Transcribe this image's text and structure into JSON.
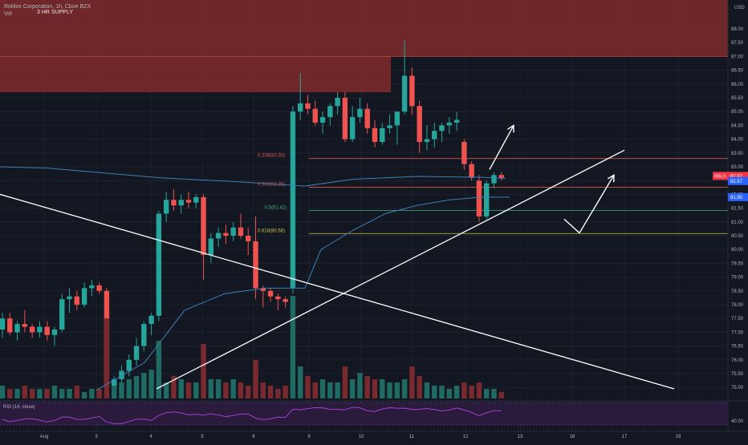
{
  "chart_data": {
    "type": "candlestick",
    "title": "Roblox Corporation, 1h, Cboe BZX",
    "volume_label": "Vol",
    "currency": "USD",
    "ylim": [
      74.6,
      88.9
    ],
    "y_ticks": [
      "88.00",
      "87.50",
      "87.00",
      "86.50",
      "86.00",
      "85.50",
      "85.00",
      "84.50",
      "84.00",
      "83.50",
      "83.00",
      "82.50",
      "82.00",
      "81.50",
      "81.00",
      "80.50",
      "80.00",
      "79.50",
      "79.00",
      "78.50",
      "78.00",
      "77.50",
      "77.00",
      "76.50",
      "76.00",
      "75.50",
      "75.00"
    ],
    "x_ticks": [
      "Aug",
      "3",
      "4",
      "5",
      "6",
      "9",
      "10",
      "11",
      "12",
      "13",
      "16",
      "17",
      "18"
    ],
    "supply_zone": {
      "label": "3 HR SUPPLY",
      "ylim_upper": [
        87.0,
        88.9
      ],
      "ylim_lower": [
        85.7,
        87.0
      ]
    },
    "fibonacci": [
      {
        "label": "0.236(83.30)",
        "price": 83.3,
        "color": "#e2574c"
      },
      {
        "label": "0.382(82.26)",
        "price": 82.26,
        "color": "#e2574c"
      },
      {
        "label": "0.5(81.42)",
        "price": 81.42,
        "color": "#4caf7d"
      },
      {
        "label": "0.618(80.58)",
        "price": 80.58,
        "color": "#c9c64a"
      }
    ],
    "price_badges": [
      {
        "label": "RBLX",
        "value": "82.67",
        "color": "#f23645"
      },
      {
        "value": "82.57",
        "color": "#2962ff"
      },
      {
        "value": "81.90",
        "color": "#2962ff"
      }
    ],
    "candles": [
      [
        77.1,
        77.7,
        76.8,
        77.5
      ],
      [
        77.5,
        77.7,
        76.9,
        77.0
      ],
      [
        77.0,
        77.4,
        76.7,
        77.3
      ],
      [
        77.3,
        77.8,
        77.0,
        77.2
      ],
      [
        77.2,
        77.3,
        76.8,
        77.0
      ],
      [
        77.0,
        77.4,
        76.8,
        77.2
      ],
      [
        77.2,
        77.4,
        76.7,
        76.9
      ],
      [
        76.9,
        77.2,
        76.5,
        77.1
      ],
      [
        77.1,
        78.4,
        77.0,
        78.2
      ],
      [
        78.2,
        78.6,
        77.7,
        78.3
      ],
      [
        78.3,
        78.5,
        77.8,
        78.0
      ],
      [
        78.0,
        78.8,
        77.9,
        78.6
      ],
      [
        78.6,
        78.9,
        78.3,
        78.7
      ],
      [
        78.7,
        78.8,
        78.4,
        78.5
      ],
      [
        78.5,
        78.6,
        74.9,
        75.0
      ],
      [
        75.0,
        75.4,
        74.9,
        75.3
      ],
      [
        75.3,
        75.8,
        75.1,
        75.6
      ],
      [
        75.6,
        76.2,
        75.4,
        76.0
      ],
      [
        76.0,
        76.8,
        75.8,
        76.5
      ],
      [
        76.5,
        77.4,
        76.3,
        77.3
      ],
      [
        77.3,
        77.7,
        76.9,
        77.6
      ],
      [
        77.6,
        81.4,
        77.4,
        81.3
      ],
      [
        81.3,
        82.1,
        81.0,
        81.8
      ],
      [
        81.8,
        82.2,
        81.4,
        81.6
      ],
      [
        81.6,
        82.0,
        81.3,
        81.8
      ],
      [
        81.8,
        82.1,
        81.5,
        81.7
      ],
      [
        81.7,
        82.0,
        81.5,
        81.9
      ],
      [
        81.9,
        82.0,
        78.9,
        79.8
      ],
      [
        79.8,
        80.6,
        79.5,
        80.4
      ],
      [
        80.4,
        80.8,
        80.1,
        80.6
      ],
      [
        80.6,
        80.9,
        80.2,
        80.5
      ],
      [
        80.5,
        81.0,
        80.3,
        80.8
      ],
      [
        80.8,
        81.3,
        80.4,
        80.5
      ],
      [
        80.5,
        80.8,
        79.8,
        80.3
      ],
      [
        80.3,
        81.2,
        78.2,
        78.6
      ],
      [
        78.6,
        78.7,
        77.9,
        78.5
      ],
      [
        78.5,
        78.6,
        78.1,
        78.3
      ],
      [
        78.3,
        78.4,
        77.8,
        78.2
      ],
      [
        78.2,
        78.3,
        77.9,
        78.1
      ],
      [
        78.6,
        85.2,
        78.4,
        85.0
      ],
      [
        85.0,
        86.4,
        84.7,
        85.3
      ],
      [
        85.3,
        85.6,
        84.9,
        85.1
      ],
      [
        85.1,
        85.4,
        84.5,
        84.6
      ],
      [
        84.6,
        85.0,
        84.2,
        84.8
      ],
      [
        84.8,
        85.3,
        84.5,
        85.2
      ],
      [
        85.2,
        85.7,
        84.9,
        85.5
      ],
      [
        85.5,
        85.7,
        83.9,
        84.0
      ],
      [
        84.0,
        85.2,
        83.9,
        84.8
      ],
      [
        84.8,
        85.5,
        84.6,
        85.1
      ],
      [
        85.1,
        85.3,
        84.2,
        84.4
      ],
      [
        84.4,
        84.7,
        83.7,
        83.9
      ],
      [
        83.9,
        84.6,
        83.8,
        84.4
      ],
      [
        84.4,
        84.9,
        84.2,
        84.5
      ],
      [
        84.5,
        85.0,
        83.8,
        85.0
      ],
      [
        85.0,
        87.6,
        84.9,
        86.3
      ],
      [
        86.3,
        86.6,
        84.9,
        85.2
      ],
      [
        85.2,
        85.4,
        83.5,
        83.9
      ],
      [
        83.9,
        84.5,
        83.6,
        84.0
      ],
      [
        84.0,
        84.6,
        83.7,
        84.3
      ],
      [
        84.3,
        84.6,
        83.9,
        84.5
      ],
      [
        84.5,
        84.8,
        84.2,
        84.6
      ],
      [
        84.6,
        85.0,
        84.3,
        84.7
      ],
      [
        83.9,
        84.0,
        82.9,
        83.1
      ],
      [
        83.1,
        83.2,
        82.5,
        82.6
      ],
      [
        82.5,
        82.7,
        81.0,
        81.2
      ],
      [
        81.2,
        82.5,
        81.1,
        82.4
      ],
      [
        82.4,
        82.8,
        82.2,
        82.7
      ],
      [
        82.7,
        82.8,
        82.5,
        82.6
      ]
    ],
    "volumes": [
      0.04,
      0.03,
      0.03,
      0.04,
      0.03,
      0.03,
      0.03,
      0.04,
      0.03,
      0.03,
      0.04,
      0.02,
      0.03,
      0.03,
      0.25,
      0.04,
      0.05,
      0.06,
      0.07,
      0.08,
      0.09,
      0.18,
      0.05,
      0.07,
      0.06,
      0.05,
      0.05,
      0.17,
      0.06,
      0.06,
      0.05,
      0.06,
      0.05,
      0.04,
      0.12,
      0.05,
      0.04,
      0.03,
      0.04,
      0.32,
      0.1,
      0.07,
      0.05,
      0.06,
      0.05,
      0.05,
      0.1,
      0.06,
      0.08,
      0.07,
      0.06,
      0.06,
      0.05,
      0.05,
      0.06,
      0.1,
      0.07,
      0.05,
      0.04,
      0.04,
      0.03,
      0.04,
      0.05,
      0.04,
      0.05,
      0.03,
      0.03,
      0.02
    ],
    "vwap_upper": [
      [
        0,
        83.0
      ],
      [
        60,
        82.95
      ],
      [
        120,
        82.8
      ],
      [
        200,
        82.6
      ],
      [
        300,
        82.45
      ],
      [
        380,
        82.3
      ],
      [
        440,
        82.55
      ],
      [
        520,
        82.65
      ],
      [
        600,
        82.62
      ],
      [
        630,
        82.58
      ]
    ],
    "vwap_lower": [
      [
        120,
        74.9
      ],
      [
        180,
        75.9
      ],
      [
        230,
        77.8
      ],
      [
        280,
        78.4
      ],
      [
        330,
        78.6
      ],
      [
        380,
        78.6
      ],
      [
        400,
        80.0
      ],
      [
        440,
        80.7
      ],
      [
        480,
        81.3
      ],
      [
        520,
        81.6
      ],
      [
        560,
        81.8
      ],
      [
        600,
        81.9
      ],
      [
        635,
        81.9
      ]
    ],
    "trendlines": [
      {
        "from": [
          0,
          82.0
        ],
        "to": [
          840,
          74.95
        ]
      },
      {
        "from": [
          195,
          74.95
        ],
        "to": [
          778,
          83.6
        ]
      }
    ],
    "arrows": [
      {
        "from": [
          610,
          82.9
        ],
        "to": [
          640,
          84.5
        ]
      },
      {
        "from": [
          703,
          81.1
        ],
        "to": [
          722,
          80.6
        ],
        "via": [
          765,
          82.7
        ]
      }
    ],
    "rsi": {
      "label": "RSI (14, close)",
      "ticks": [
        "40.00"
      ]
    }
  }
}
